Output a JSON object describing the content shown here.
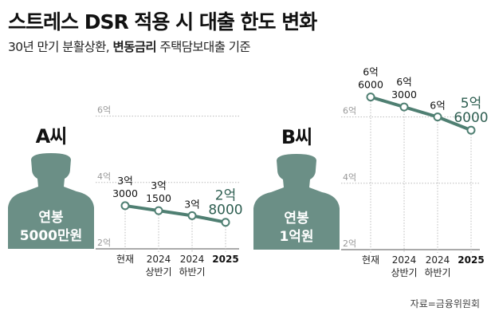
{
  "title": "스트레스 DSR 적용 시 대출 한도 변화",
  "subtitle_plain": "30년 만기 분활상환, ",
  "subtitle_bold": "변동금리",
  "subtitle_rest": " 주택담보대출 기준",
  "source": "자료=금융위원회",
  "colors": {
    "line": "#4f7f72",
    "silhouette": "#6b8f86",
    "highlight": "#2f5f52"
  },
  "chart_data": [
    {
      "type": "line",
      "person": "A씨",
      "salary_line1": "연봉",
      "salary_line2": "5000만원",
      "categories": [
        "현재",
        "2024 상반기",
        "2024 하반기",
        "2025"
      ],
      "x_labels": [
        [
          "현재",
          ""
        ],
        [
          "2024",
          "상반기"
        ],
        [
          "2024",
          "하반기"
        ],
        [
          "2025",
          ""
        ]
      ],
      "values": [
        3.3,
        3.15,
        3.0,
        2.8
      ],
      "value_labels": [
        [
          "3억",
          "3000"
        ],
        [
          "3억",
          "1500"
        ],
        [
          "3억",
          ""
        ],
        [
          "2억",
          "8000"
        ]
      ],
      "unit": "억원",
      "yticks": [
        2,
        4,
        6
      ],
      "ytick_labels": [
        "2억",
        "4억",
        "6억"
      ],
      "ylim": [
        2,
        6.8
      ],
      "grid": true
    },
    {
      "type": "line",
      "person": "B씨",
      "salary_line1": "연봉",
      "salary_line2": "1억원",
      "categories": [
        "현재",
        "2024 상반기",
        "2024 하반기",
        "2025"
      ],
      "x_labels": [
        [
          "현재",
          ""
        ],
        [
          "2024",
          "상반기"
        ],
        [
          "2024",
          "하반기"
        ],
        [
          "2025",
          ""
        ]
      ],
      "values": [
        6.6,
        6.3,
        6.0,
        5.6
      ],
      "value_labels": [
        [
          "6억",
          "6000"
        ],
        [
          "6억",
          "3000"
        ],
        [
          "6억",
          ""
        ],
        [
          "5억",
          "6000"
        ]
      ],
      "unit": "억원",
      "yticks": [
        2,
        4,
        6
      ],
      "ytick_labels": [
        "2억",
        "4억",
        "6억"
      ],
      "ylim": [
        2,
        6.8
      ],
      "grid": true
    }
  ]
}
